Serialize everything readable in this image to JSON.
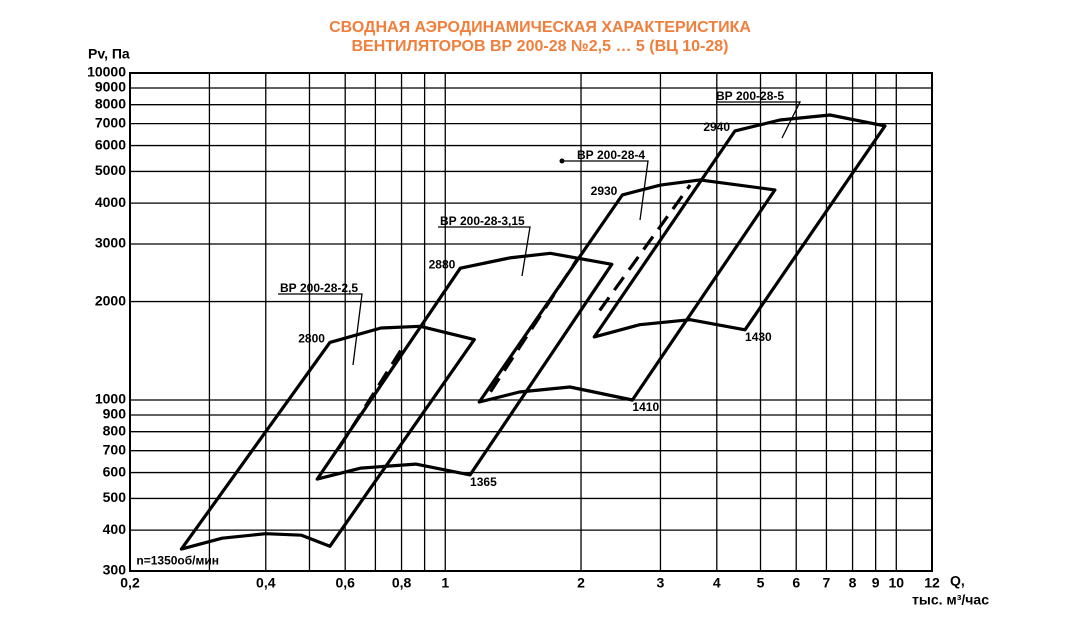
{
  "chart_data": {
    "type": "fan-regions",
    "title": "СВОДНАЯ АЭРОДИНАМИЧЕСКАЯ ХАРАКТЕРИСТИКА",
    "subtitle": "ВЕНТИЛЯТОРОВ ВР 200-28 №2,5 … 5 (ВЦ 10-28)",
    "ylabel": "Pv, Па",
    "xlabel": "Q,",
    "xunit": "тыс. м³/час",
    "title_color": "#f07f3c",
    "log_x": true,
    "log_y": true,
    "grid": true,
    "xlim": [
      0.2,
      12
    ],
    "ylim": [
      300,
      10000
    ],
    "xticks": [
      {
        "value": 0.2,
        "label": "0,2"
      },
      {
        "value": 0.4,
        "label": "0,4"
      },
      {
        "value": 0.6,
        "label": "0,6"
      },
      {
        "value": 0.8,
        "label": "0,8"
      },
      1,
      2,
      3,
      4,
      5,
      6,
      7,
      8,
      9,
      10,
      12
    ],
    "xminor": [
      0.3,
      0.5,
      0.7,
      0.9
    ],
    "yticks": [
      300,
      400,
      500,
      600,
      700,
      800,
      900,
      1000,
      2000,
      3000,
      4000,
      5000,
      6000,
      7000,
      8000,
      9000,
      10000
    ],
    "series": [
      {
        "name": "ВР 200-28-2,5",
        "color": "#000000",
        "top_speed": "2800",
        "bottom_speed": "n=1350об/мин",
        "bottom_x": [
          0.26,
          0.32,
          0.4,
          0.48,
          0.555
        ],
        "bottom_y": [
          350,
          378,
          390,
          386,
          357
        ],
        "top_x": [
          0.555,
          0.72,
          0.88,
          1.16
        ],
        "top_y": [
          1500,
          1660,
          1680,
          1530
        ],
        "dash_x": [
          0.58,
          0.81
        ],
        "dash_y": [
          710,
          1470
        ]
      },
      {
        "name": "ВР 200-28-3,15",
        "color": "#000000",
        "top_speed": "2880",
        "bottom_speed": "1365",
        "bottom_x": [
          0.52,
          0.65,
          0.86,
          1.135
        ],
        "bottom_y": [
          573,
          619,
          637,
          590
        ],
        "top_x": [
          1.08,
          1.39,
          1.71,
          2.34
        ],
        "top_y": [
          2530,
          2720,
          2810,
          2600
        ],
        "dash_x": [
          1.26,
          1.97
        ],
        "dash_y": [
          1060,
          2720
        ]
      },
      {
        "name": "ВР 200-28-4",
        "color": "#000000",
        "top_speed": "2930",
        "bottom_speed": "1410",
        "bottom_x": [
          1.19,
          1.46,
          1.89,
          2.6
        ],
        "bottom_y": [
          986,
          1058,
          1096,
          1000
        ],
        "top_x": [
          2.47,
          3.0,
          3.67,
          5.38
        ],
        "top_y": [
          4240,
          4540,
          4710,
          4390
        ],
        "dash_x": [
          2.2,
          3.49
        ],
        "dash_y": [
          1880,
          4540
        ]
      },
      {
        "name": "ВР 200-28-5",
        "color": "#000000",
        "top_speed": "2940",
        "bottom_speed": "1430",
        "bottom_x": [
          2.14,
          2.7,
          3.49,
          4.62
        ],
        "bottom_y": [
          1560,
          1700,
          1760,
          1640
        ],
        "top_x": [
          4.39,
          5.52,
          7.13,
          9.44
        ],
        "top_y": [
          6650,
          7180,
          7440,
          6890
        ],
        "dash_x": [],
        "dash_y": []
      }
    ]
  }
}
